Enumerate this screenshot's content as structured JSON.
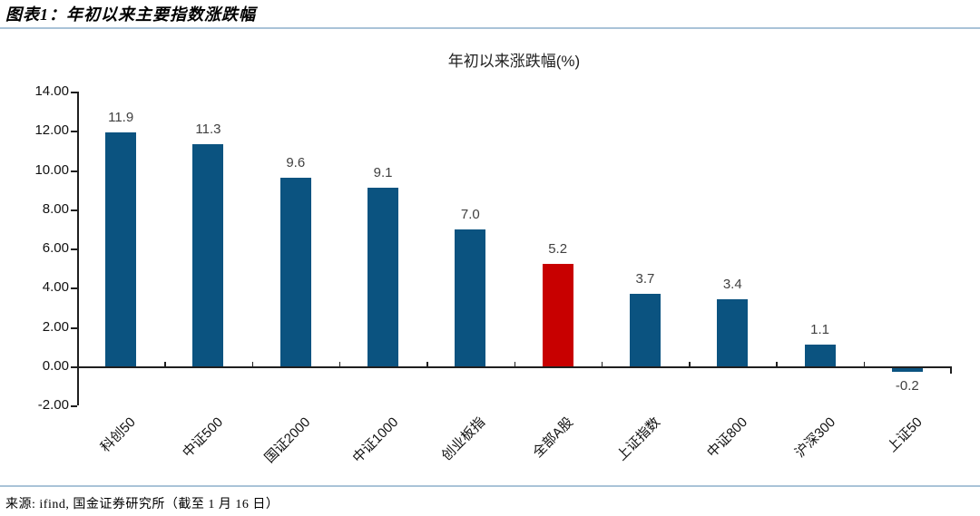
{
  "header": {
    "title": "图表1：年初以来主要指数涨跌幅"
  },
  "footer": {
    "source": "来源: ifind, 国金证券研究所（截至 1 月 16 日）"
  },
  "colors": {
    "bar_blue": "#0B5380",
    "bar_red": "#C80000",
    "rule_line": "#A9C3D8",
    "axis_line": "#1f1f1f",
    "value_label": "#404040"
  },
  "chart_data": {
    "type": "bar",
    "title": "年初以来涨跌幅(%)",
    "categories": [
      "科创50",
      "中证500",
      "国证2000",
      "中证1000",
      "创业板指",
      "全部A股",
      "上证指数",
      "中证800",
      "沪深300",
      "上证50"
    ],
    "values": [
      11.9,
      11.3,
      9.6,
      9.1,
      7.0,
      5.2,
      3.7,
      3.4,
      1.1,
      -0.2
    ],
    "value_labels": [
      "11.9",
      "11.3",
      "9.6",
      "9.1",
      "7.0",
      "5.2",
      "3.7",
      "3.4",
      "1.1",
      "-0.2"
    ],
    "highlight_index": 5,
    "highlight_category": "全部A股",
    "ylabel": "",
    "xlabel": "",
    "ylim": [
      -2,
      14
    ],
    "ytick_step": 2,
    "ytick_labels": [
      "14.00",
      "12.00",
      "10.00",
      "8.00",
      "6.00",
      "4.00",
      "2.00",
      "0.00",
      "-2.00"
    ],
    "grid": false,
    "legend": null,
    "data_label_decimals": 1
  }
}
